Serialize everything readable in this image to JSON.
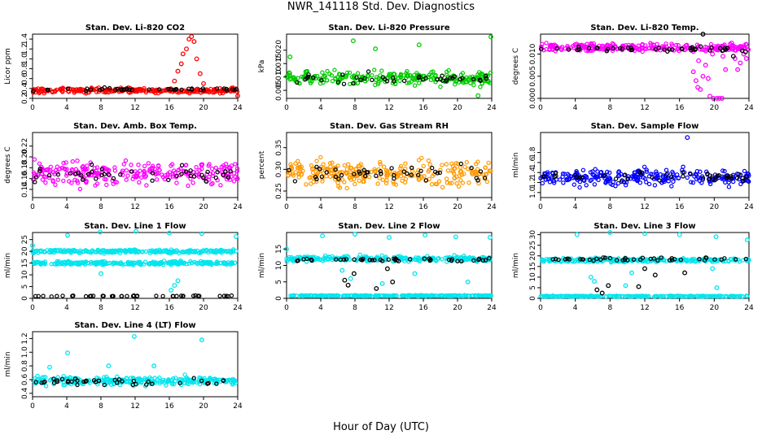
{
  "figure": {
    "title": "NWR_141118 Std. Dev. Diagnostics",
    "xlabel": "Hour of Day (UTC)"
  },
  "chart_data": [
    {
      "type": "scatter",
      "title": "Stan. Dev. Li-820 CO2",
      "ylabel": "Licor ppm",
      "xlim": [
        0,
        24
      ],
      "ylim": [
        0.2,
        1.5
      ],
      "xticks": [
        0,
        4,
        8,
        12,
        16,
        20,
        24
      ],
      "yticks": [
        0.2,
        0.4,
        0.6,
        0.8,
        1.0,
        1.2,
        1.4
      ],
      "grid": false,
      "series": [
        {
          "color": "#ff0000",
          "band": {
            "center": 0.36,
            "spread": 0.05
          },
          "outliers": [
            [
              16.6,
              0.55
            ],
            [
              17.0,
              0.75
            ],
            [
              17.4,
              0.9
            ],
            [
              17.6,
              1.1
            ],
            [
              18.0,
              1.2
            ],
            [
              18.3,
              1.4
            ],
            [
              18.6,
              1.45
            ],
            [
              18.9,
              1.35
            ],
            [
              19.2,
              1.0
            ],
            [
              19.6,
              0.7
            ],
            [
              20.0,
              0.5
            ],
            [
              24.0,
              0.25
            ]
          ]
        },
        {
          "color": "#000000",
          "band": {
            "center": 0.38,
            "spread": 0.03
          }
        }
      ]
    },
    {
      "type": "scatter",
      "title": "Stan. Dev. Li-820 Pressure",
      "ylabel": "kPa",
      "xlim": [
        0,
        24
      ],
      "ylim": [
        0.002,
        0.026
      ],
      "xticks": [
        0,
        4,
        8,
        12,
        16,
        20,
        24
      ],
      "yticks": [
        0.005,
        0.01,
        0.015,
        0.02
      ],
      "grid": false,
      "series": [
        {
          "color": "#00cc00",
          "band": {
            "center": 0.0095,
            "spread": 0.0025
          },
          "outliers": [
            [
              0.4,
              0.0175
            ],
            [
              7.8,
              0.0235
            ],
            [
              10.4,
              0.0205
            ],
            [
              15.5,
              0.022
            ],
            [
              23.9,
              0.025
            ],
            [
              22.4,
              0.003
            ]
          ]
        },
        {
          "color": "#000000",
          "band": {
            "center": 0.0095,
            "spread": 0.002
          }
        }
      ]
    },
    {
      "type": "scatter",
      "title": "Stan. Dev. Li-820 Temp.",
      "ylabel": "degrees C",
      "xlim": [
        0,
        24
      ],
      "ylim": [
        0,
        0.0145
      ],
      "xticks": [
        0,
        4,
        8,
        12,
        16,
        20,
        24
      ],
      "yticks": [
        0.0,
        0.005,
        0.01
      ],
      "grid": false,
      "series": [
        {
          "color": "#ff00ff",
          "band": {
            "center": 0.0115,
            "spread": 0.0008
          },
          "outliers": [
            [
              17.6,
              0.006
            ],
            [
              17.9,
              0.004
            ],
            [
              18.1,
              0.0025
            ],
            [
              18.4,
              0.002
            ],
            [
              18.7,
              0.005
            ],
            [
              19.0,
              0.0075
            ],
            [
              19.3,
              0.0045
            ],
            [
              19.5,
              0.0005
            ],
            [
              19.9,
              0.0
            ],
            [
              20.3,
              0.0
            ],
            [
              20.6,
              0.0
            ],
            [
              20.9,
              0.0
            ],
            [
              21.3,
              0.0065
            ],
            [
              21.7,
              0.011
            ],
            [
              22.0,
              0.0125
            ],
            [
              22.4,
              0.009
            ],
            [
              22.7,
              0.0065
            ],
            [
              23.0,
              0.008
            ],
            [
              23.4,
              0.01
            ],
            [
              23.7,
              0.009
            ],
            [
              19.8,
              0.01
            ],
            [
              21.0,
              0.0095
            ],
            [
              18.2,
              0.0085
            ]
          ]
        },
        {
          "color": "#000000",
          "band": {
            "center": 0.0112,
            "spread": 0.0006
          },
          "outliers": [
            [
              18.7,
              0.0145
            ],
            [
              22.2,
              0.0095
            ],
            [
              23.6,
              0.0105
            ]
          ]
        }
      ]
    },
    {
      "type": "scatter",
      "title": "Stan. Dev. Amb. Box Temp.",
      "ylabel": "degrees C",
      "xlim": [
        0,
        24
      ],
      "ylim": [
        0.125,
        0.245
      ],
      "xticks": [
        0,
        4,
        8,
        12,
        16,
        20,
        24
      ],
      "yticks": [
        0.14,
        0.16,
        0.18,
        0.2,
        0.22
      ],
      "grid": false,
      "series": [
        {
          "color": "#ff00ff",
          "band": {
            "center": 0.17,
            "spread": 0.022
          }
        },
        {
          "color": "#000000",
          "band": {
            "center": 0.168,
            "spread": 0.012
          }
        }
      ]
    },
    {
      "type": "scatter",
      "title": "Stan. Dev. Gas Stream RH",
      "ylabel": "percent",
      "xlim": [
        0,
        24
      ],
      "ylim": [
        0.235,
        0.385
      ],
      "xticks": [
        0,
        4,
        8,
        12,
        16,
        20,
        24
      ],
      "yticks": [
        0.25,
        0.3,
        0.35
      ],
      "grid": false,
      "series": [
        {
          "color": "#ff9900",
          "band": {
            "center": 0.292,
            "spread": 0.028
          }
        },
        {
          "color": "#000000",
          "band": {
            "center": 0.288,
            "spread": 0.02
          }
        }
      ]
    },
    {
      "type": "scatter",
      "title": "Stan. Dev. Sample Flow",
      "ylabel": "ml/min",
      "xlim": [
        0,
        24
      ],
      "ylim": [
        0.9,
        2.2
      ],
      "xticks": [
        0,
        4,
        8,
        12,
        16,
        20,
        24
      ],
      "yticks": [
        1.0,
        1.2,
        1.4,
        1.6,
        1.8
      ],
      "grid": false,
      "series": [
        {
          "color": "#0000ff",
          "band": {
            "center": 1.3,
            "spread": 0.15
          },
          "outliers": [
            [
              16.9,
              2.1
            ]
          ]
        },
        {
          "color": "#000000",
          "band": {
            "center": 1.32,
            "spread": 0.1
          }
        }
      ]
    },
    {
      "type": "scatter",
      "title": "Stan. Dev. Line 1 Flow",
      "ylabel": "ml/min",
      "xlim": [
        0,
        24
      ],
      "ylim": [
        0,
        28
      ],
      "xticks": [
        0,
        4,
        8,
        12,
        16,
        20,
        24
      ],
      "yticks": [
        0,
        5,
        10,
        15,
        20,
        25
      ],
      "grid": false,
      "series": [
        {
          "color": "#00e5ee",
          "band": {
            "center": 20,
            "spread": 0.7
          },
          "outliers": [
            [
              0.0,
              22.5
            ],
            [
              4.1,
              26.8
            ],
            [
              7.9,
              28.2
            ],
            [
              12.1,
              28.5
            ],
            [
              16.0,
              27.8
            ],
            [
              19.8,
              27.5
            ],
            [
              23.8,
              26.3
            ],
            [
              8.0,
              10.5
            ],
            [
              16.2,
              3.5
            ],
            [
              16.6,
              5.5
            ],
            [
              17.0,
              7.5
            ]
          ]
        },
        {
          "color": "#00e5ee",
          "band": {
            "center": 15,
            "spread": 0.7
          }
        },
        {
          "color": "#000000",
          "band": {
            "center": 1.0,
            "spread": 0.2
          }
        }
      ]
    },
    {
      "type": "scatter",
      "title": "Stan. Dev. Line 2 Flow",
      "ylabel": "ml/min",
      "xlim": [
        0,
        24
      ],
      "ylim": [
        0,
        20
      ],
      "xticks": [
        0,
        4,
        8,
        12,
        16,
        20,
        24
      ],
      "yticks": [
        0,
        5,
        10,
        15
      ],
      "grid": false,
      "series": [
        {
          "color": "#00e5ee",
          "band": {
            "center": 12,
            "spread": 0.8
          },
          "outliers": [
            [
              0.0,
              15
            ],
            [
              4.2,
              19
            ],
            [
              8.0,
              19.5
            ],
            [
              12.0,
              18.5
            ],
            [
              16.2,
              19.2
            ],
            [
              19.8,
              18.7
            ],
            [
              23.8,
              18.5
            ],
            [
              6.5,
              8.5
            ],
            [
              7.5,
              6.0
            ],
            [
              11.2,
              4.5
            ],
            [
              15.0,
              7.5
            ],
            [
              21.2,
              5.0
            ]
          ]
        },
        {
          "color": "#00e5ee",
          "band": {
            "center": 0.8,
            "spread": 0.15
          }
        },
        {
          "color": "#000000",
          "band": {
            "center": 11.8,
            "spread": 0.6
          },
          "outliers": [
            [
              6.8,
              5.5
            ],
            [
              7.2,
              4.0
            ],
            [
              7.9,
              7.5
            ],
            [
              10.5,
              3.0
            ],
            [
              11.8,
              9.0
            ],
            [
              12.4,
              5.0
            ]
          ]
        }
      ]
    },
    {
      "type": "scatter",
      "title": "Stan. Dev. Line 3 Flow",
      "ylabel": "ml/min",
      "xlim": [
        0,
        24
      ],
      "ylim": [
        0,
        31
      ],
      "xticks": [
        0,
        4,
        8,
        12,
        16,
        20,
        24
      ],
      "yticks": [
        0,
        5,
        10,
        15,
        20,
        25,
        30
      ],
      "grid": false,
      "series": [
        {
          "color": "#00e5ee",
          "band": {
            "center": 18,
            "spread": 0.9
          },
          "outliers": [
            [
              4.2,
              30
            ],
            [
              8.0,
              31
            ],
            [
              12.0,
              30.5
            ],
            [
              16.0,
              30
            ],
            [
              20.2,
              29
            ],
            [
              23.8,
              27.5
            ],
            [
              5.8,
              10.0
            ],
            [
              6.2,
              8.0
            ],
            [
              9.8,
              6.0
            ],
            [
              10.5,
              12.0
            ],
            [
              19.8,
              14.0
            ],
            [
              20.3,
              5.0
            ]
          ]
        },
        {
          "color": "#00e5ee",
          "band": {
            "center": 1.0,
            "spread": 0.2
          }
        },
        {
          "color": "#000000",
          "band": {
            "center": 18.5,
            "spread": 0.8
          },
          "outliers": [
            [
              6.5,
              4.0
            ],
            [
              7.1,
              2.5
            ],
            [
              7.8,
              6.0
            ],
            [
              11.3,
              5.5
            ],
            [
              12.0,
              14.0
            ],
            [
              13.2,
              11.0
            ],
            [
              16.6,
              12.0
            ]
          ]
        }
      ]
    },
    {
      "type": "scatter",
      "title": "Stan. Dev. Line 4 (LT) Flow",
      "ylabel": "ml/min",
      "xlim": [
        0,
        24
      ],
      "ylim": [
        0.35,
        1.3
      ],
      "xticks": [
        0,
        4,
        8,
        12,
        16,
        20,
        24
      ],
      "yticks": [
        0.4,
        0.6,
        0.8,
        1.0,
        1.2
      ],
      "grid": false,
      "series": [
        {
          "color": "#00e5ee",
          "band": {
            "center": 0.58,
            "spread": 0.06
          },
          "outliers": [
            [
              4.1,
              0.99
            ],
            [
              11.9,
              1.23
            ],
            [
              19.8,
              1.18
            ],
            [
              2.0,
              0.78
            ],
            [
              8.9,
              0.8
            ],
            [
              14.2,
              0.8
            ]
          ]
        },
        {
          "color": "#000000",
          "band": {
            "center": 0.57,
            "spread": 0.05
          }
        }
      ]
    }
  ]
}
